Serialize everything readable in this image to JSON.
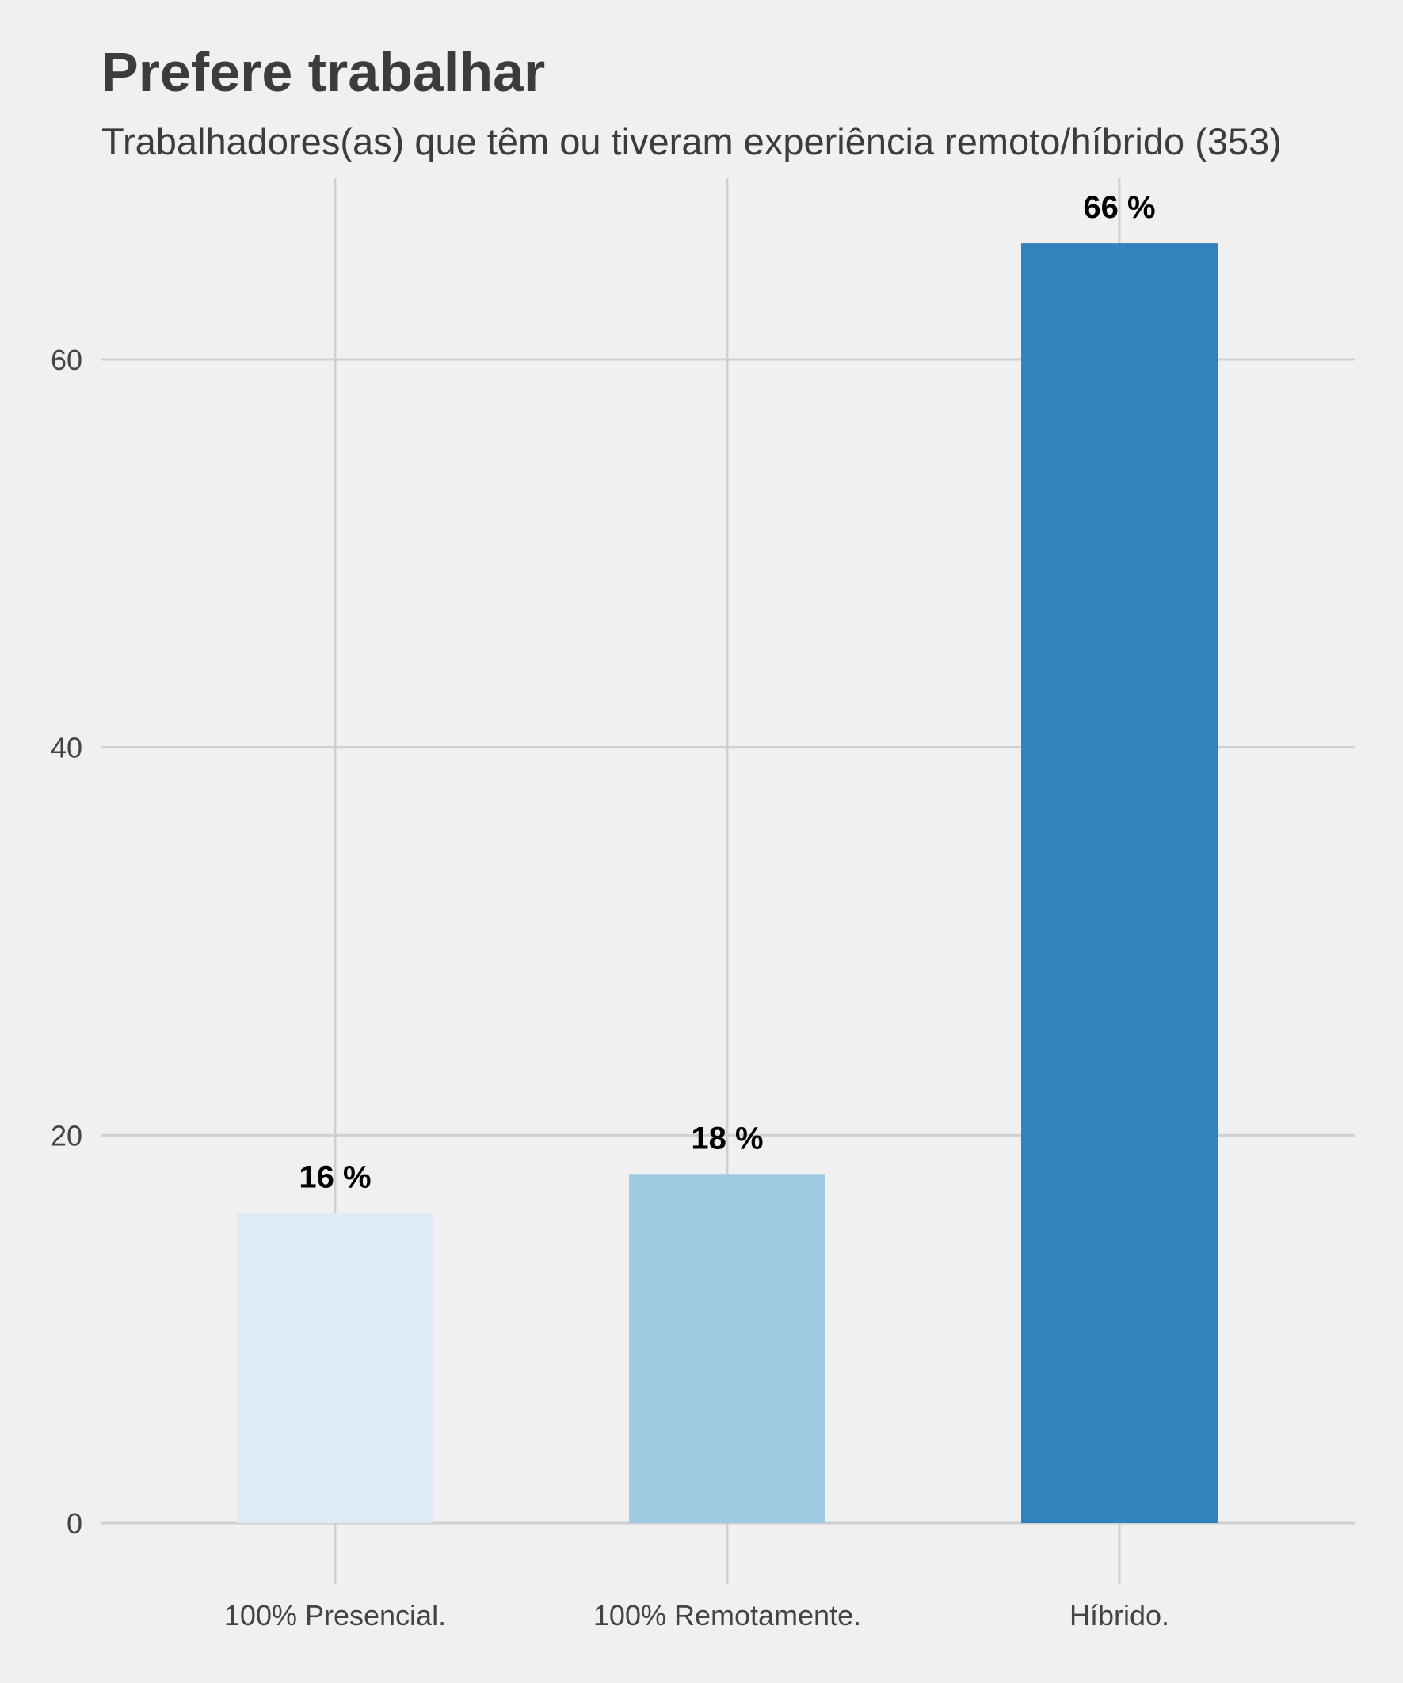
{
  "chart_data": {
    "type": "bar",
    "title": "Prefere trabalhar",
    "subtitle": "Trabalhadores(as) que têm ou tiveram experiência remoto/híbrido (353)",
    "categories": [
      "100% Presencial.",
      "100% Remotamente.",
      "Híbrido."
    ],
    "values": [
      16,
      18,
      66
    ],
    "data_labels": [
      "16 %",
      "18 %",
      "66 %"
    ],
    "colors": [
      "#deebf7",
      "#9ecae1",
      "#3182bd"
    ],
    "y_ticks": [
      0,
      20,
      40,
      60
    ],
    "y_tick_labels": [
      "0",
      "20",
      "40",
      "60"
    ],
    "ylim": [
      0,
      70
    ],
    "xlabel": "",
    "ylabel": "",
    "grid": true,
    "legend": "none"
  },
  "colors": {
    "background": "#f0f0f0",
    "grid": "#cfcfcf",
    "text": "#3c3c3c"
  }
}
